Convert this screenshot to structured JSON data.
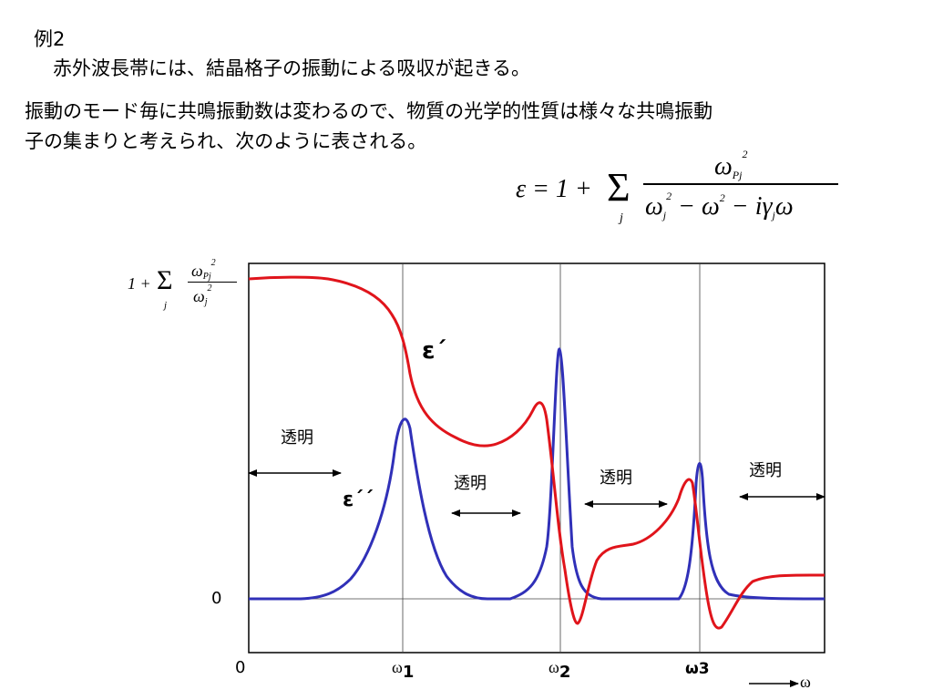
{
  "heading": "例2",
  "line1": "赤外波長帯には、結晶格子の振動による吸収が起きる。",
  "line2": "振動のモード毎に共鳴振動数は変わるので、物質の光学的性質は様々な共鳴振動",
  "line3": "子の集まりと考えられ、次のように表される。",
  "formula": {
    "lhs": "ε = 1 +",
    "sigma": "Σ",
    "index": "j",
    "numerator": "ω",
    "num_sub": "Pj",
    "num_sup": "2",
    "den_omega_j": "ω",
    "den_j": "j",
    "den_sup": "2",
    "den_minus1": "− ω",
    "den_sup2": "2",
    "den_minus2": "− iγ",
    "den_gamma_j": "j",
    "den_omega": "ω"
  },
  "axis_formula": {
    "lhs": "1 +",
    "sigma": "Σ",
    "index": "j",
    "numerator": "ω",
    "num_sub": "Pj",
    "num_sup": "2",
    "den": "ω",
    "den_sub": "j",
    "den_sup": "2"
  },
  "chart_data": {
    "type": "line",
    "series": [
      {
        "name": "ε´",
        "color": "#e0141b"
      },
      {
        "name": "ε´´",
        "color": "#3030b8"
      }
    ],
    "x_ticks": [
      {
        "label": "0"
      },
      {
        "label": "ω",
        "sub": "1"
      },
      {
        "label": "ω",
        "sub": "2"
      },
      {
        "label": "ω3"
      }
    ],
    "y_ticks": [
      "0"
    ],
    "x_axis_label": "ω",
    "transparent_label": "透明",
    "transparent_regions": [
      "透明",
      "透明",
      "透明",
      "透明"
    ]
  }
}
